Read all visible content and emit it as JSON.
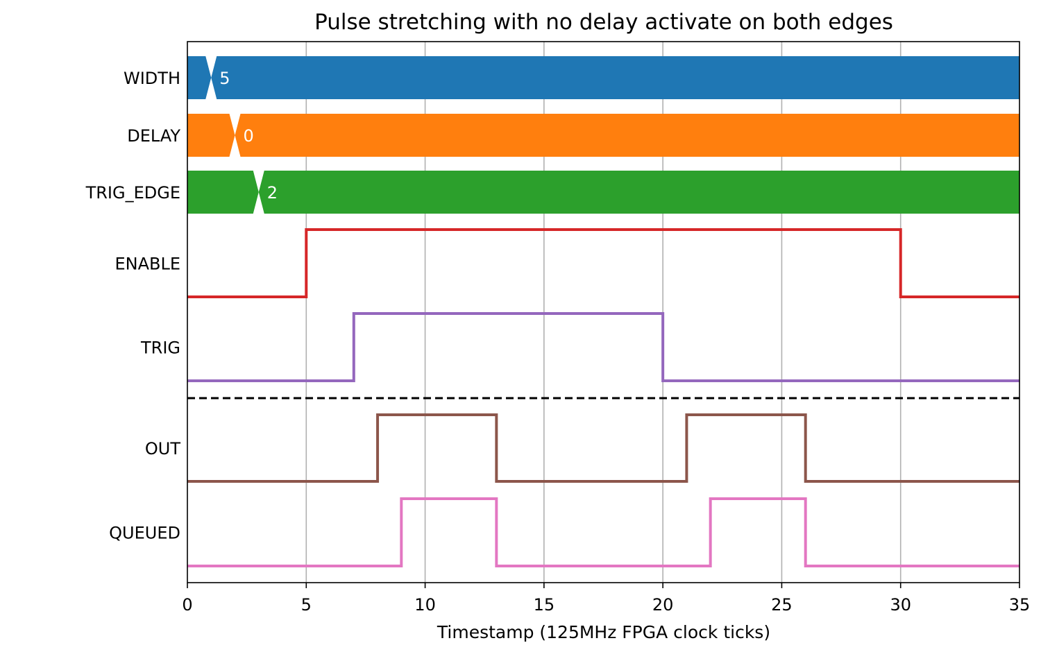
{
  "chart_data": {
    "type": "line",
    "subtype": "timing-diagram",
    "title": "Pulse stretching with no delay activate on both edges",
    "xlabel": "Timestamp (125MHz FPGA clock ticks)",
    "ylabel": "",
    "xlim": [
      0,
      35
    ],
    "xticks": [
      0,
      5,
      10,
      15,
      20,
      25,
      30,
      35
    ],
    "grid": "vertical",
    "buses": [
      {
        "name": "WIDTH",
        "value": "5",
        "transition_at": 1,
        "color": "#1f77b4"
      },
      {
        "name": "DELAY",
        "value": "0",
        "transition_at": 2,
        "color": "#ff7f0e"
      },
      {
        "name": "TRIG_EDGE",
        "value": "2",
        "transition_at": 3,
        "color": "#2ca02c"
      }
    ],
    "inputs": [
      {
        "name": "ENABLE",
        "color": "#d62728",
        "high": [
          [
            5,
            30
          ]
        ]
      },
      {
        "name": "TRIG",
        "color": "#9467bd",
        "high": [
          [
            7,
            20
          ]
        ]
      }
    ],
    "separator": "dashed",
    "outputs": [
      {
        "name": "OUT",
        "color": "#8c564b",
        "high": [
          [
            8,
            13
          ],
          [
            21,
            26
          ]
        ]
      },
      {
        "name": "QUEUED",
        "color": "#e377c2",
        "high": [
          [
            9,
            13
          ],
          [
            22,
            26
          ]
        ]
      }
    ]
  }
}
